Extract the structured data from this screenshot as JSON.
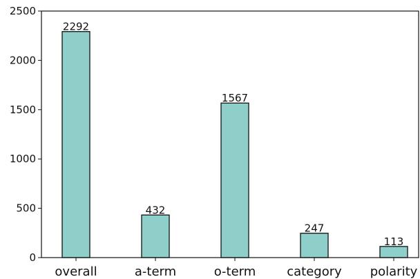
{
  "chart_data": {
    "type": "bar",
    "categories": [
      "overall",
      "a-term",
      "o-term",
      "category",
      "polarity"
    ],
    "values": [
      2292,
      432,
      1567,
      247,
      113
    ],
    "data_labels": [
      "2292",
      "432",
      "1567",
      "247",
      "113"
    ],
    "title": "",
    "xlabel": "",
    "ylabel": "",
    "ylim": [
      0,
      2500
    ],
    "yticks": [
      0,
      500,
      1000,
      1500,
      2000,
      2500
    ],
    "ytick_labels": [
      "0",
      "500",
      "1000",
      "1500",
      "2000",
      "2500"
    ],
    "grid": false,
    "legend": "none",
    "bar_color": "#8ecfc9",
    "bar_edge_color": "#111111"
  }
}
